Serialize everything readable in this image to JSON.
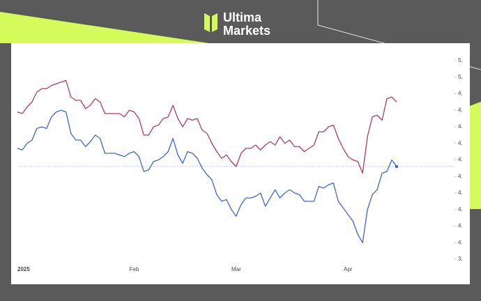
{
  "brand": {
    "line1": "Ultima",
    "line2": "Markets"
  },
  "chart_data": {
    "type": "line",
    "x": [
      0,
      1,
      2,
      3,
      4,
      5,
      6,
      7,
      8,
      9,
      10,
      11,
      12,
      13,
      14,
      15,
      16,
      17,
      18,
      19,
      20,
      21,
      22,
      23,
      24,
      25,
      26,
      27,
      28,
      29,
      30,
      31,
      32,
      33,
      34,
      35,
      36,
      37,
      38,
      39,
      40,
      41,
      42,
      43,
      44,
      45,
      46,
      47,
      48,
      49,
      50,
      51,
      52,
      53,
      54,
      55,
      56,
      57,
      58,
      59,
      60,
      61,
      62,
      63,
      64,
      65,
      66,
      67,
      68,
      69,
      70,
      71,
      72,
      73,
      74,
      75,
      76,
      77,
      78
    ],
    "series": [
      {
        "color": "#b03a5e",
        "values": [
          4.79,
          4.78,
          4.82,
          4.85,
          4.91,
          4.93,
          4.93,
          4.95,
          4.96,
          4.97,
          4.98,
          4.88,
          4.86,
          4.86,
          4.81,
          4.83,
          4.87,
          4.85,
          4.78,
          4.78,
          4.78,
          4.78,
          4.76,
          4.8,
          4.79,
          4.75,
          4.65,
          4.65,
          4.7,
          4.71,
          4.75,
          4.76,
          4.83,
          4.75,
          4.7,
          4.75,
          4.74,
          4.75,
          4.68,
          4.66,
          4.6,
          4.55,
          4.51,
          4.53,
          4.49,
          4.46,
          4.54,
          4.57,
          4.57,
          4.59,
          4.56,
          4.59,
          4.61,
          4.59,
          4.64,
          4.6,
          4.62,
          4.58,
          4.58,
          4.55,
          4.57,
          4.59,
          4.67,
          4.67,
          4.7,
          4.71,
          4.63,
          4.57,
          4.52,
          4.5,
          4.49,
          4.42,
          4.64,
          4.76,
          4.77,
          4.74,
          4.87,
          4.88,
          4.85
        ]
      },
      {
        "color": "#3d63dd",
        "values": [
          4.57,
          4.56,
          4.6,
          4.62,
          4.69,
          4.7,
          4.69,
          4.76,
          4.79,
          4.8,
          4.79,
          4.66,
          4.62,
          4.62,
          4.58,
          4.61,
          4.65,
          4.63,
          4.54,
          4.54,
          4.54,
          4.53,
          4.52,
          4.54,
          4.55,
          4.52,
          4.43,
          4.44,
          4.49,
          4.5,
          4.52,
          4.55,
          4.63,
          4.53,
          4.48,
          4.55,
          4.54,
          4.51,
          4.45,
          4.41,
          4.38,
          4.29,
          4.25,
          4.26,
          4.2,
          4.16,
          4.23,
          4.27,
          4.27,
          4.28,
          4.3,
          4.22,
          4.27,
          4.32,
          4.27,
          4.3,
          4.32,
          4.3,
          4.29,
          4.25,
          4.25,
          4.25,
          4.34,
          4.33,
          4.35,
          4.36,
          4.25,
          4.21,
          4.17,
          4.13,
          4.05,
          4.0,
          4.2,
          4.29,
          4.32,
          4.42,
          4.43,
          4.5,
          4.46
        ]
      }
    ],
    "xlim": [
      0,
      78
    ],
    "xticks": [
      {
        "value": 0,
        "label": "2025"
      },
      {
        "value": 24,
        "label": "Feb"
      },
      {
        "value": 45,
        "label": "Mar"
      },
      {
        "value": 68,
        "label": "Apr"
      }
    ],
    "ylim": [
      3.85,
      5.2
    ],
    "yticks": [
      {
        "value": 5.1,
        "label": "5."
      },
      {
        "value": 5.0,
        "label": "5."
      },
      {
        "value": 4.9,
        "label": "4."
      },
      {
        "value": 4.8,
        "label": "4."
      },
      {
        "value": 4.7,
        "label": "4."
      },
      {
        "value": 4.6,
        "label": "4."
      },
      {
        "value": 4.5,
        "label": "4."
      },
      {
        "value": 4.4,
        "label": "4."
      },
      {
        "value": 4.3,
        "label": "4."
      },
      {
        "value": 4.2,
        "label": "4."
      },
      {
        "value": 4.1,
        "label": "4."
      },
      {
        "value": 4.0,
        "label": "4."
      },
      {
        "value": 3.9,
        "label": "3."
      }
    ]
  }
}
